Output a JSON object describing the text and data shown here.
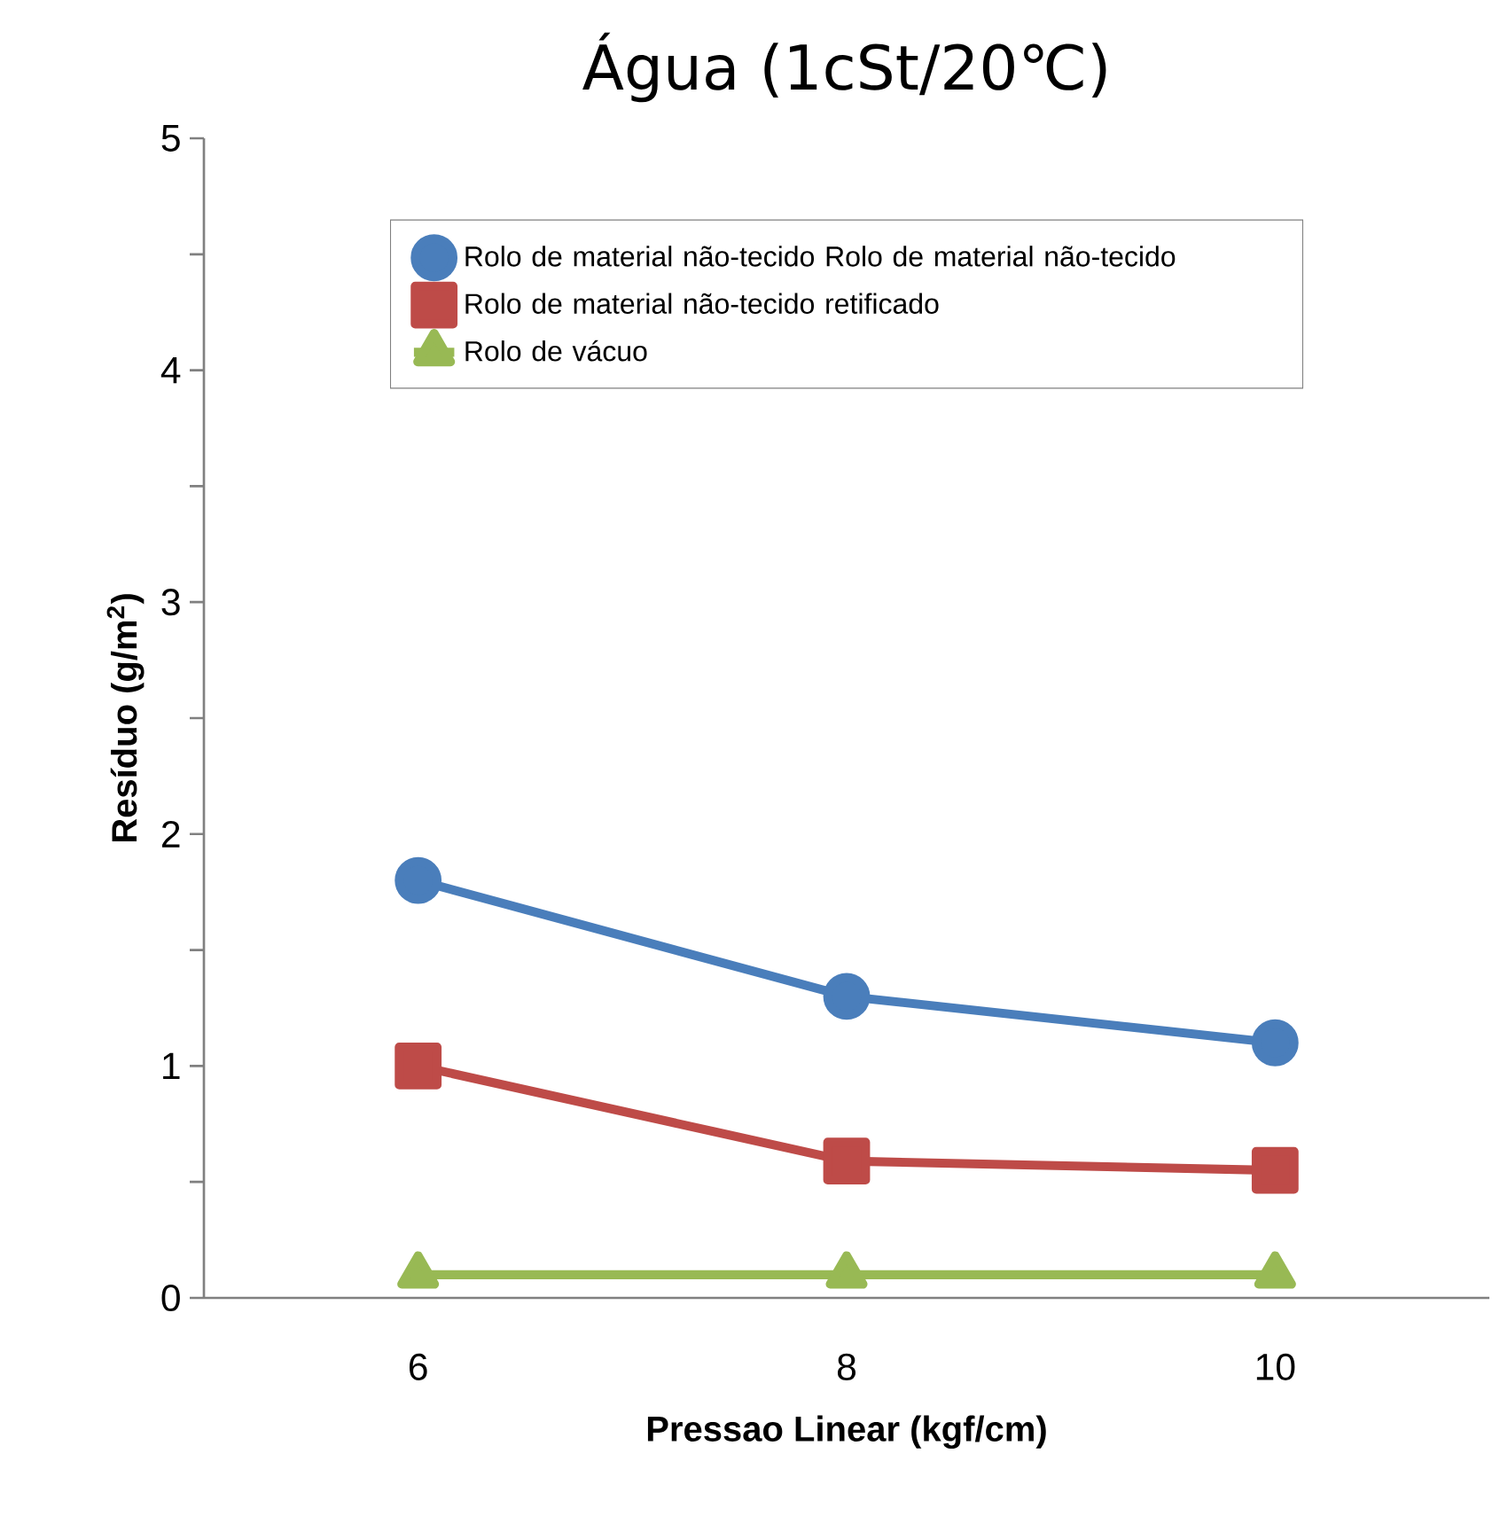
{
  "chart_data": {
    "type": "line",
    "title": "Água (1cSt/20℃)",
    "xlabel": "Pressao Linear (kgf/cm)",
    "ylabel": "Resíduo (g/m$^{2}$)",
    "x": [
      6,
      8,
      10
    ],
    "xlim": [
      5,
      11
    ],
    "xticks": [
      6,
      8,
      10
    ],
    "ylim": [
      0,
      5
    ],
    "yticks": [
      0,
      {
        "value": 0.5,
        "label": null
      },
      1,
      {
        "value": 1.5,
        "label": null
      },
      2,
      {
        "value": 2.5,
        "label": null
      },
      3,
      {
        "value": 3.5,
        "label": null
      },
      4,
      {
        "value": 4.5,
        "label": null
      },
      5
    ],
    "grid": false,
    "legend": "top",
    "series": [
      {
        "name": "Rolo de material não-tecido Rolo de material não-tecido",
        "color": "#4a7ebb",
        "marker": "circle",
        "values": [
          1.8,
          1.3,
          1.1
        ]
      },
      {
        "name": "Rolo de material não-tecido retificado",
        "color": "#be4b48",
        "marker": "square",
        "values": [
          1.0,
          0.59,
          0.55
        ]
      },
      {
        "name": "Rolo de vácuo",
        "color": "#98b954",
        "marker": "triangle",
        "values": [
          0.1,
          0.1,
          0.1
        ]
      }
    ]
  }
}
